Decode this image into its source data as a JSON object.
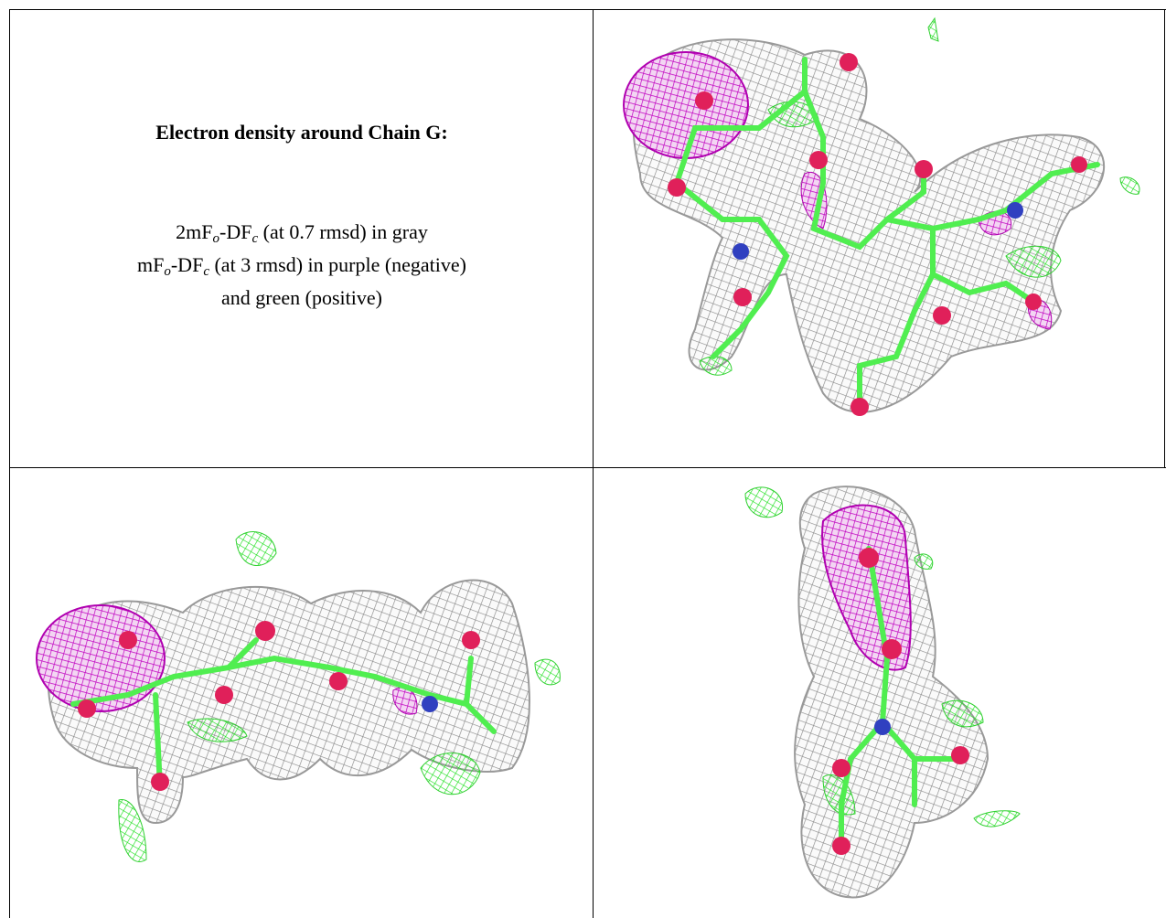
{
  "caption": {
    "title": "Electron density around Chain G:",
    "lines": [
      [
        "2mF",
        "o",
        "-DF",
        "c",
        " (at 0.7 rmsd) in gray"
      ],
      [
        "mF",
        "o",
        "-DF",
        "c",
        " (at 3 rmsd) in purple (negative)"
      ],
      [
        "and green (positive)"
      ]
    ]
  }
}
